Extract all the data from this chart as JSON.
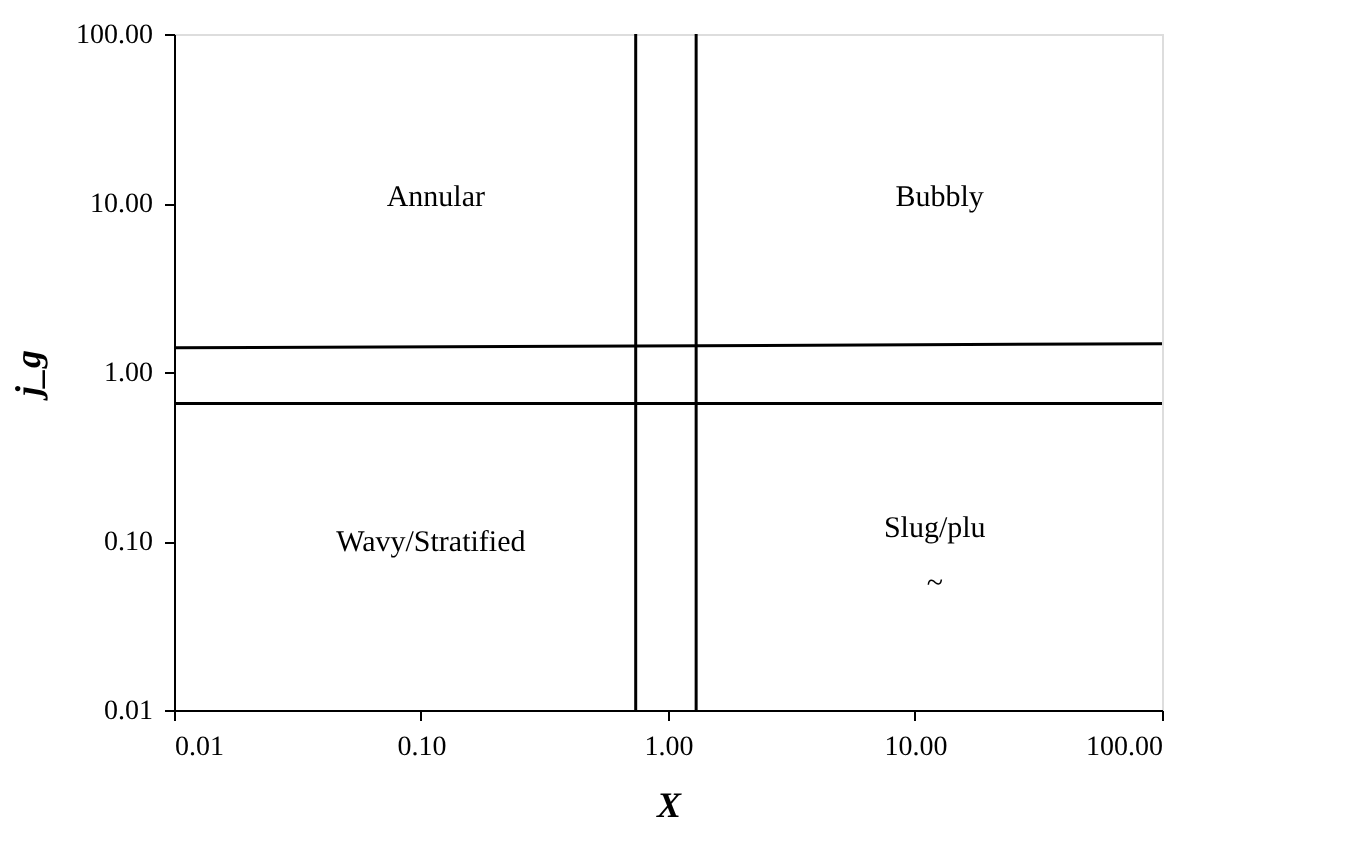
{
  "chart_data": {
    "type": "line",
    "xlabel": "X",
    "ylabel": "j_g",
    "log": "xy",
    "grid": false,
    "xlim": [
      0.01,
      100
    ],
    "ylim": [
      0.01,
      100
    ],
    "xticks": [
      {
        "value": 0.01,
        "label": "0.01"
      },
      {
        "value": 0.1,
        "label": "0.10"
      },
      {
        "value": 1,
        "label": "1.00"
      },
      {
        "value": 10,
        "label": "10.00"
      },
      {
        "value": 100,
        "label": "100.00"
      }
    ],
    "yticks": [
      {
        "value": 0.01,
        "label": "0.01"
      },
      {
        "value": 0.1,
        "label": "0.10"
      },
      {
        "value": 1,
        "label": "1.00"
      },
      {
        "value": 10,
        "label": "10.00"
      },
      {
        "value": 100,
        "label": "100.00"
      }
    ],
    "series": [
      {
        "color": "#000000",
        "x": [
          0.01,
          100
        ],
        "values": [
          1.39,
          1.47
        ]
      }
    ],
    "ref_lines": [
      {
        "axis": "x",
        "value": 0.74,
        "color": "#000000"
      },
      {
        "axis": "x",
        "value": 1.3,
        "color": "#000000"
      },
      {
        "axis": "y",
        "value": 0.65,
        "color": "#000000"
      }
    ],
    "annotations": [
      "Annular",
      "Bubbly",
      "Wavy/Stratified",
      "Slug/plu",
      "~"
    ]
  }
}
